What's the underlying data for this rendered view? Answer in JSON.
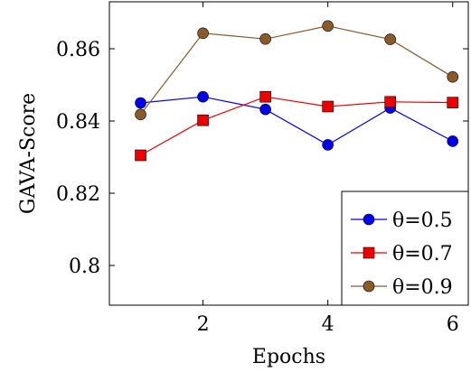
{
  "chart_data": {
    "type": "line",
    "title": "",
    "xlabel": "Epochs",
    "ylabel": "GAVA-Score",
    "xlim": [
      0.5,
      6.25
    ],
    "ylim": [
      0.789,
      0.873
    ],
    "x_ticks": [
      2,
      4,
      6
    ],
    "x_tick_labels": [
      "2",
      "4",
      "6"
    ],
    "y_ticks": [
      0.8,
      0.82,
      0.84,
      0.86
    ],
    "y_tick_labels": [
      "0.8",
      "0.82",
      "0.84",
      "0.86"
    ],
    "grid": false,
    "legend_position": "bottom-right",
    "x": [
      1,
      2,
      3,
      4,
      5,
      6
    ],
    "series": [
      {
        "name": "θ=0.5",
        "color": "#0000ee",
        "marker": "circle",
        "values": [
          0.845,
          0.8467,
          0.8432,
          0.8334,
          0.8436,
          0.8344
        ]
      },
      {
        "name": "θ=0.7",
        "color": "#ee0000",
        "marker": "square",
        "values": [
          0.8305,
          0.8402,
          0.8467,
          0.844,
          0.8453,
          0.8451
        ]
      },
      {
        "name": "θ=0.9",
        "color": "#8b5a2b",
        "marker": "circle",
        "values": [
          0.8418,
          0.8643,
          0.8627,
          0.8663,
          0.8626,
          0.8522
        ]
      }
    ]
  }
}
